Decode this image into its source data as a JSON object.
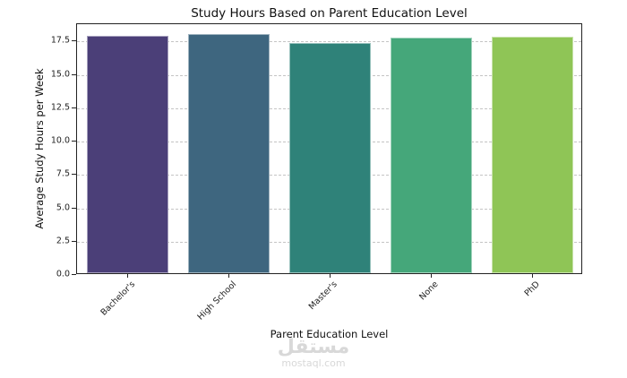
{
  "chart_data": {
    "type": "bar",
    "title": "Study Hours Based on Parent Education Level",
    "xlabel": "Parent Education Level",
    "ylabel": "Average Study Hours per Week",
    "categories": [
      "Bachelor's",
      "High School",
      "Master's",
      "None",
      "PhD"
    ],
    "values": [
      17.8,
      17.9,
      17.25,
      17.65,
      17.7
    ],
    "colors": [
      "#4b3f78",
      "#3e667f",
      "#2f8279",
      "#45a77a",
      "#8fc556"
    ],
    "ylim": [
      0,
      18.8
    ],
    "yticks": [
      "0.0",
      "2.5",
      "5.0",
      "7.5",
      "10.0",
      "12.5",
      "15.0",
      "17.5"
    ],
    "grid": "y dashed",
    "legend": "none"
  },
  "watermark": {
    "arabic": "مستقل",
    "latin": "mostaql.com"
  }
}
